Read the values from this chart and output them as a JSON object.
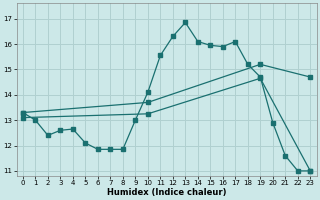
{
  "xlabel": "Humidex (Indice chaleur)",
  "bg_color": "#cce8e8",
  "grid_color": "#b0d0d0",
  "line_color": "#1a7070",
  "xlim": [
    -0.5,
    23.5
  ],
  "ylim": [
    10.8,
    17.6
  ],
  "yticks": [
    11,
    12,
    13,
    14,
    15,
    16,
    17
  ],
  "xticks": [
    0,
    1,
    2,
    3,
    4,
    5,
    6,
    7,
    8,
    9,
    10,
    11,
    12,
    13,
    14,
    15,
    16,
    17,
    18,
    19,
    20,
    21,
    22,
    23
  ],
  "series1_x": [
    0,
    1,
    2,
    3,
    4,
    5,
    6,
    7,
    8,
    9,
    10,
    11,
    12,
    13,
    14,
    15,
    16,
    17,
    18,
    19,
    20,
    21,
    22,
    23
  ],
  "series1_y": [
    13.3,
    13.0,
    12.4,
    12.6,
    12.65,
    12.1,
    11.85,
    11.85,
    11.85,
    13.0,
    14.1,
    15.55,
    16.3,
    16.85,
    16.1,
    15.95,
    15.9,
    16.1,
    15.2,
    14.7,
    12.9,
    11.6,
    11.0,
    11.0
  ],
  "series2_x": [
    0,
    10,
    19,
    23
  ],
  "series2_y": [
    13.3,
    13.7,
    15.2,
    14.7
  ],
  "series3_x": [
    0,
    10,
    19,
    23
  ],
  "series3_y": [
    13.1,
    13.25,
    14.65,
    11.0
  ],
  "marker_size": 2.5,
  "linewidth": 0.9
}
